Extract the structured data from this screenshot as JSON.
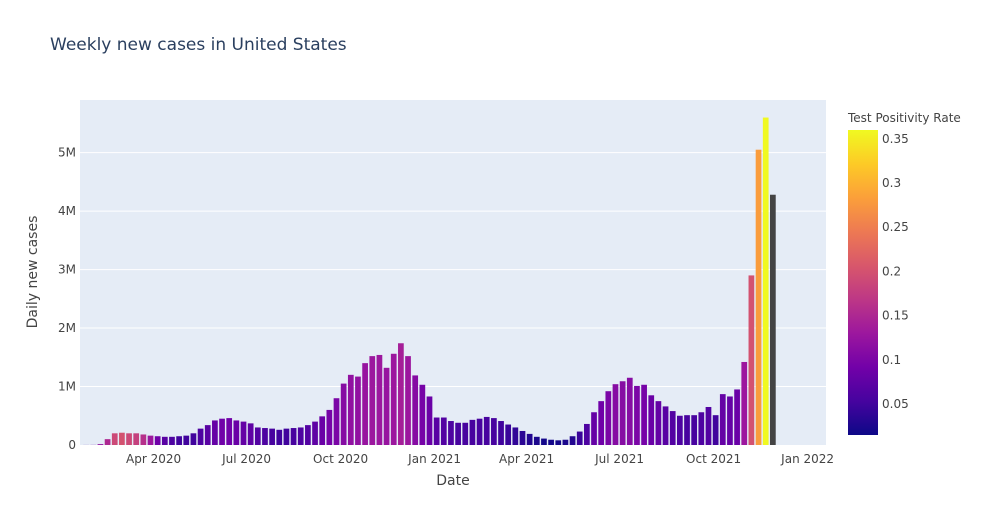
{
  "chart_data": {
    "type": "bar",
    "title": "Weekly new cases in United States",
    "xlabel": "Date",
    "ylabel": "Daily new cases",
    "x_ticks": [
      "Apr 2020",
      "Jul 2020",
      "Oct 2020",
      "Jan 2021",
      "Apr 2021",
      "Jul 2021",
      "Oct 2021",
      "Jan 2022"
    ],
    "y_ticks": [
      "0",
      "1M",
      "2M",
      "3M",
      "4M",
      "5M"
    ],
    "ylim": [
      0,
      5900000
    ],
    "grid": true,
    "colorbar": {
      "title": "Test Positivity Rate",
      "ticks": [
        "0.05",
        "0.1",
        "0.15",
        "0.2",
        "0.25",
        "0.3",
        "0.35"
      ],
      "range": [
        0.015,
        0.36
      ]
    },
    "week_start": "2020-01-26",
    "values": [
      1000,
      2000,
      15000,
      100000,
      200000,
      210000,
      200000,
      200000,
      180000,
      160000,
      150000,
      140000,
      140000,
      150000,
      160000,
      200000,
      280000,
      340000,
      420000,
      450000,
      460000,
      420000,
      400000,
      370000,
      300000,
      290000,
      280000,
      260000,
      280000,
      290000,
      300000,
      340000,
      400000,
      490000,
      600000,
      800000,
      1050000,
      1200000,
      1170000,
      1400000,
      1520000,
      1540000,
      1320000,
      1560000,
      1740000,
      1520000,
      1190000,
      1030000,
      830000,
      470000,
      470000,
      410000,
      380000,
      380000,
      430000,
      450000,
      480000,
      460000,
      410000,
      350000,
      300000,
      240000,
      190000,
      140000,
      110000,
      90000,
      80000,
      90000,
      150000,
      230000,
      360000,
      560000,
      750000,
      920000,
      1040000,
      1090000,
      1150000,
      1010000,
      1030000,
      850000,
      750000,
      660000,
      580000,
      500000,
      510000,
      510000,
      560000,
      650000,
      510000,
      870000,
      830000,
      950000,
      1420000,
      2900000,
      5050000,
      5600000,
      4280000
    ],
    "positivity": [
      0.07,
      0.09,
      0.12,
      0.15,
      0.19,
      0.2,
      0.19,
      0.18,
      0.16,
      0.13,
      0.09,
      0.07,
      0.06,
      0.05,
      0.05,
      0.05,
      0.06,
      0.07,
      0.08,
      0.09,
      0.09,
      0.085,
      0.08,
      0.075,
      0.065,
      0.06,
      0.055,
      0.05,
      0.05,
      0.055,
      0.06,
      0.065,
      0.075,
      0.085,
      0.095,
      0.1,
      0.11,
      0.12,
      0.12,
      0.125,
      0.13,
      0.13,
      0.125,
      0.13,
      0.14,
      0.13,
      0.11,
      0.095,
      0.085,
      0.07,
      0.065,
      0.06,
      0.055,
      0.055,
      0.055,
      0.055,
      0.055,
      0.055,
      0.05,
      0.045,
      0.04,
      0.035,
      0.03,
      0.025,
      0.02,
      0.02,
      0.02,
      0.025,
      0.03,
      0.045,
      0.06,
      0.08,
      0.09,
      0.1,
      0.11,
      0.11,
      0.11,
      0.1,
      0.095,
      0.085,
      0.08,
      0.07,
      0.065,
      0.06,
      0.055,
      0.055,
      0.06,
      0.065,
      0.05,
      0.08,
      0.08,
      0.085,
      0.13,
      0.2,
      0.28,
      0.36,
      null
    ]
  }
}
